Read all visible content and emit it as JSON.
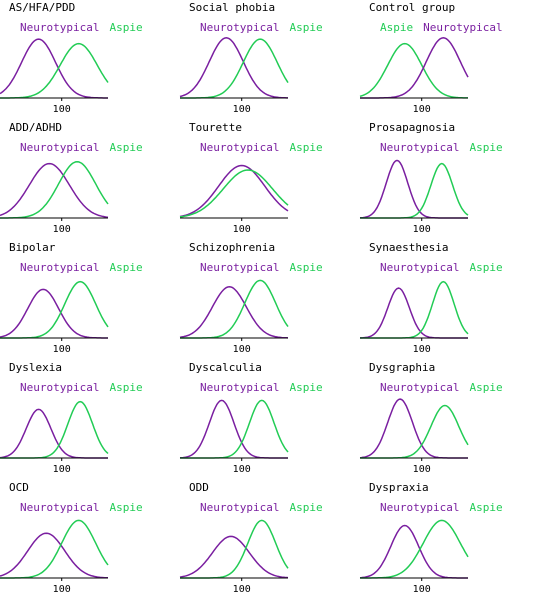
{
  "colors": {
    "neurotypical": "#7a1fa0",
    "aspie": "#22cc55",
    "axis": "#000000"
  },
  "chart_data": [
    {
      "type": "line",
      "title": "AS/HFA/PDD",
      "xtick": "100",
      "legend_order": [
        "Neurotypical",
        "Aspie"
      ],
      "series": [
        {
          "name": "Neurotypical",
          "color": "#7a1fa0",
          "peak": 70,
          "width": 22,
          "amp": 0.92
        },
        {
          "name": "Aspie",
          "color": "#22cc55",
          "peak": 122,
          "width": 24,
          "amp": 0.85
        }
      ]
    },
    {
      "type": "line",
      "title": "Social phobia",
      "xtick": "100",
      "legend_order": [
        "Neurotypical",
        "Aspie"
      ],
      "series": [
        {
          "name": "Neurotypical",
          "color": "#7a1fa0",
          "peak": 80,
          "width": 22,
          "amp": 0.94
        },
        {
          "name": "Aspie",
          "color": "#22cc55",
          "peak": 124,
          "width": 22,
          "amp": 0.92
        }
      ]
    },
    {
      "type": "line",
      "title": "Control group",
      "xtick": "100",
      "legend_order": [
        "Aspie",
        "Neurotypical"
      ],
      "series": [
        {
          "name": "Aspie",
          "color": "#22cc55",
          "peak": 78,
          "width": 22,
          "amp": 0.85
        },
        {
          "name": "Neurotypical",
          "color": "#7a1fa0",
          "peak": 128,
          "width": 22,
          "amp": 0.94
        }
      ]
    },
    {
      "type": "line",
      "title": "ADD/ADHD",
      "xtick": "100",
      "legend_order": [
        "Neurotypical",
        "Aspie"
      ],
      "series": [
        {
          "name": "Neurotypical",
          "color": "#7a1fa0",
          "peak": 84,
          "width": 26,
          "amp": 0.85
        },
        {
          "name": "Aspie",
          "color": "#22cc55",
          "peak": 120,
          "width": 24,
          "amp": 0.88
        }
      ]
    },
    {
      "type": "line",
      "title": "Tourette",
      "xtick": "100",
      "legend_order": [
        "Neurotypical",
        "Aspie"
      ],
      "series": [
        {
          "name": "Neurotypical",
          "color": "#7a1fa0",
          "peak": 100,
          "width": 30,
          "amp": 0.82
        },
        {
          "name": "Aspie",
          "color": "#22cc55",
          "peak": 108,
          "width": 32,
          "amp": 0.75
        }
      ]
    },
    {
      "type": "line",
      "title": "Prosapagnosia",
      "xtick": "100",
      "legend_order": [
        "Neurotypical",
        "Aspie"
      ],
      "series": [
        {
          "name": "Neurotypical",
          "color": "#7a1fa0",
          "peak": 68,
          "width": 14,
          "amp": 0.9
        },
        {
          "name": "Aspie",
          "color": "#22cc55",
          "peak": 126,
          "width": 14,
          "amp": 0.85
        }
      ]
    },
    {
      "type": "line",
      "title": "Bipolar",
      "xtick": "100",
      "legend_order": [
        "Neurotypical",
        "Aspie"
      ],
      "series": [
        {
          "name": "Neurotypical",
          "color": "#7a1fa0",
          "peak": 76,
          "width": 20,
          "amp": 0.76
        },
        {
          "name": "Aspie",
          "color": "#22cc55",
          "peak": 124,
          "width": 20,
          "amp": 0.88
        }
      ]
    },
    {
      "type": "line",
      "title": "Schizophrenia",
      "xtick": "100",
      "legend_order": [
        "Neurotypical",
        "Aspie"
      ],
      "series": [
        {
          "name": "Neurotypical",
          "color": "#7a1fa0",
          "peak": 84,
          "width": 22,
          "amp": 0.8
        },
        {
          "name": "Aspie",
          "color": "#22cc55",
          "peak": 124,
          "width": 20,
          "amp": 0.9
        }
      ]
    },
    {
      "type": "line",
      "title": "Synaesthesia",
      "xtick": "100",
      "legend_order": [
        "Neurotypical",
        "Aspie"
      ],
      "series": [
        {
          "name": "Neurotypical",
          "color": "#7a1fa0",
          "peak": 70,
          "width": 14,
          "amp": 0.78
        },
        {
          "name": "Aspie",
          "color": "#22cc55",
          "peak": 128,
          "width": 14,
          "amp": 0.88
        }
      ]
    },
    {
      "type": "line",
      "title": "Dyslexia",
      "xtick": "100",
      "legend_order": [
        "Neurotypical",
        "Aspie"
      ],
      "series": [
        {
          "name": "Neurotypical",
          "color": "#7a1fa0",
          "peak": 70,
          "width": 16,
          "amp": 0.76
        },
        {
          "name": "Aspie",
          "color": "#22cc55",
          "peak": 124,
          "width": 16,
          "amp": 0.88
        }
      ]
    },
    {
      "type": "line",
      "title": "Dyscalculia",
      "xtick": "100",
      "legend_order": [
        "Neurotypical",
        "Aspie"
      ],
      "series": [
        {
          "name": "Neurotypical",
          "color": "#7a1fa0",
          "peak": 74,
          "width": 16,
          "amp": 0.9
        },
        {
          "name": "Aspie",
          "color": "#22cc55",
          "peak": 126,
          "width": 16,
          "amp": 0.9
        }
      ]
    },
    {
      "type": "line",
      "title": "Dysgraphia",
      "xtick": "100",
      "legend_order": [
        "Neurotypical",
        "Aspie"
      ],
      "series": [
        {
          "name": "Neurotypical",
          "color": "#7a1fa0",
          "peak": 72,
          "width": 16,
          "amp": 0.92
        },
        {
          "name": "Aspie",
          "color": "#22cc55",
          "peak": 130,
          "width": 18,
          "amp": 0.82
        }
      ]
    },
    {
      "type": "line",
      "title": "OCD",
      "xtick": "100",
      "legend_order": [
        "Neurotypical",
        "Aspie"
      ],
      "series": [
        {
          "name": "Neurotypical",
          "color": "#7a1fa0",
          "peak": 80,
          "width": 24,
          "amp": 0.7
        },
        {
          "name": "Aspie",
          "color": "#22cc55",
          "peak": 122,
          "width": 22,
          "amp": 0.9
        }
      ]
    },
    {
      "type": "line",
      "title": "ODD",
      "xtick": "100",
      "legend_order": [
        "Neurotypical",
        "Aspie"
      ],
      "series": [
        {
          "name": "Neurotypical",
          "color": "#7a1fa0",
          "peak": 86,
          "width": 24,
          "amp": 0.65
        },
        {
          "name": "Aspie",
          "color": "#22cc55",
          "peak": 126,
          "width": 18,
          "amp": 0.9
        }
      ]
    },
    {
      "type": "line",
      "title": "Dyspraxia",
      "xtick": "100",
      "legend_order": [
        "Neurotypical",
        "Aspie"
      ],
      "series": [
        {
          "name": "Neurotypical",
          "color": "#7a1fa0",
          "peak": 78,
          "width": 18,
          "amp": 0.82
        },
        {
          "name": "Aspie",
          "color": "#22cc55",
          "peak": 126,
          "width": 24,
          "amp": 0.9
        }
      ]
    }
  ]
}
